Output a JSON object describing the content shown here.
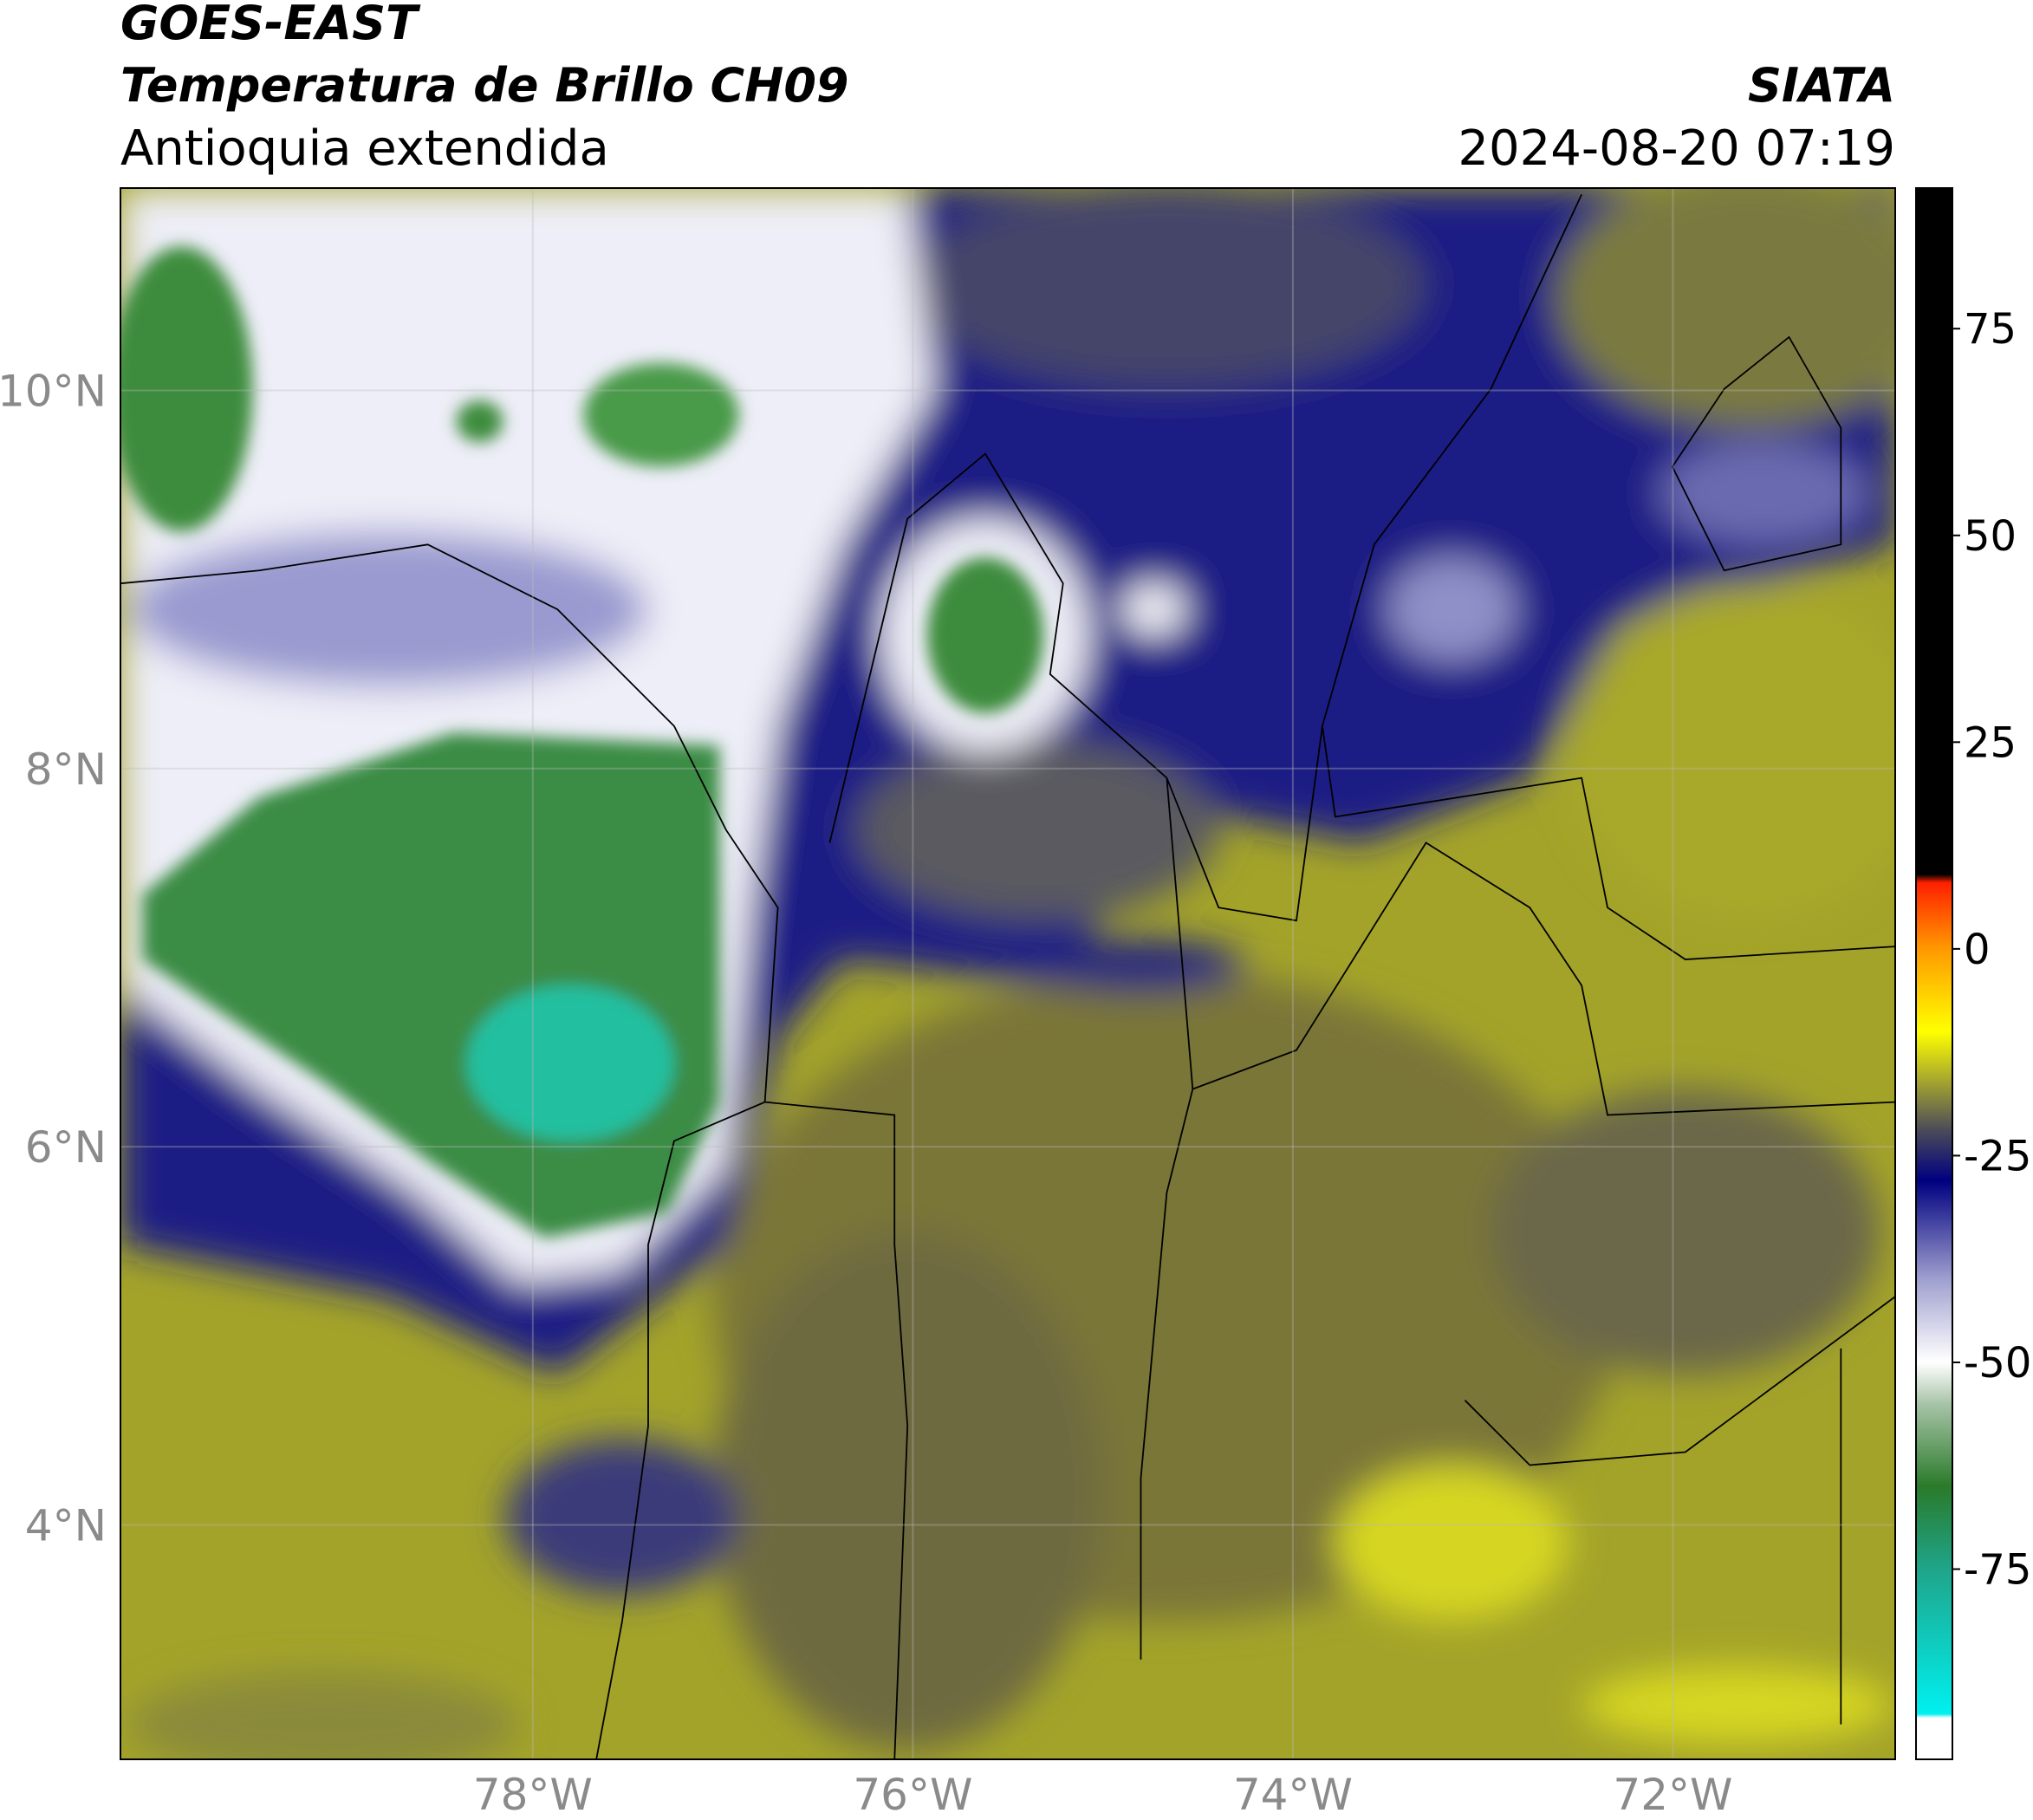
{
  "header": {
    "title": "GOES-EAST",
    "subtitle": "Temperatura de Brillo CH09",
    "region": "Antioquia extendida",
    "source": "SIATA",
    "datetime": "2024-08-20 07:19"
  },
  "map": {
    "lonlim": [
      -80.17,
      -70.83
    ],
    "latlim": [
      2.76,
      11.07
    ],
    "grid": true,
    "lonticks": [
      {
        "value": -78,
        "label": "78°W"
      },
      {
        "value": -76,
        "label": "76°W"
      },
      {
        "value": -74,
        "label": "74°W"
      },
      {
        "value": -72,
        "label": "72°W"
      }
    ],
    "latticks": [
      {
        "value": 10,
        "label": "10°N"
      },
      {
        "value": 8,
        "label": "8°N"
      },
      {
        "value": 6,
        "label": "6°N"
      },
      {
        "value": 4,
        "label": "4°N"
      }
    ]
  },
  "colorbar": {
    "lim": [
      -98,
      92
    ],
    "ticks": [
      75,
      50,
      25,
      0,
      -25,
      -50,
      -75
    ],
    "stops": [
      {
        "value": -98,
        "color": "#ffffff"
      },
      {
        "value": -93,
        "color": "#ffffff"
      },
      {
        "value": -92.5,
        "color": "#00f0f0"
      },
      {
        "value": -75,
        "color": "#1fa58a"
      },
      {
        "value": -65,
        "color": "#2a7a2a"
      },
      {
        "value": -55,
        "color": "#a8c4a8"
      },
      {
        "value": -50,
        "color": "#ffffff"
      },
      {
        "value": -40,
        "color": "#a0a0d0"
      },
      {
        "value": -28,
        "color": "#000080"
      },
      {
        "value": -22,
        "color": "#4a4a5a"
      },
      {
        "value": -15,
        "color": "#b4b428"
      },
      {
        "value": -10,
        "color": "#ffff00"
      },
      {
        "value": 0,
        "color": "#ff9900"
      },
      {
        "value": 8,
        "color": "#ff2000"
      },
      {
        "value": 9,
        "color": "#000000"
      },
      {
        "value": 92,
        "color": "#000000"
      }
    ]
  }
}
